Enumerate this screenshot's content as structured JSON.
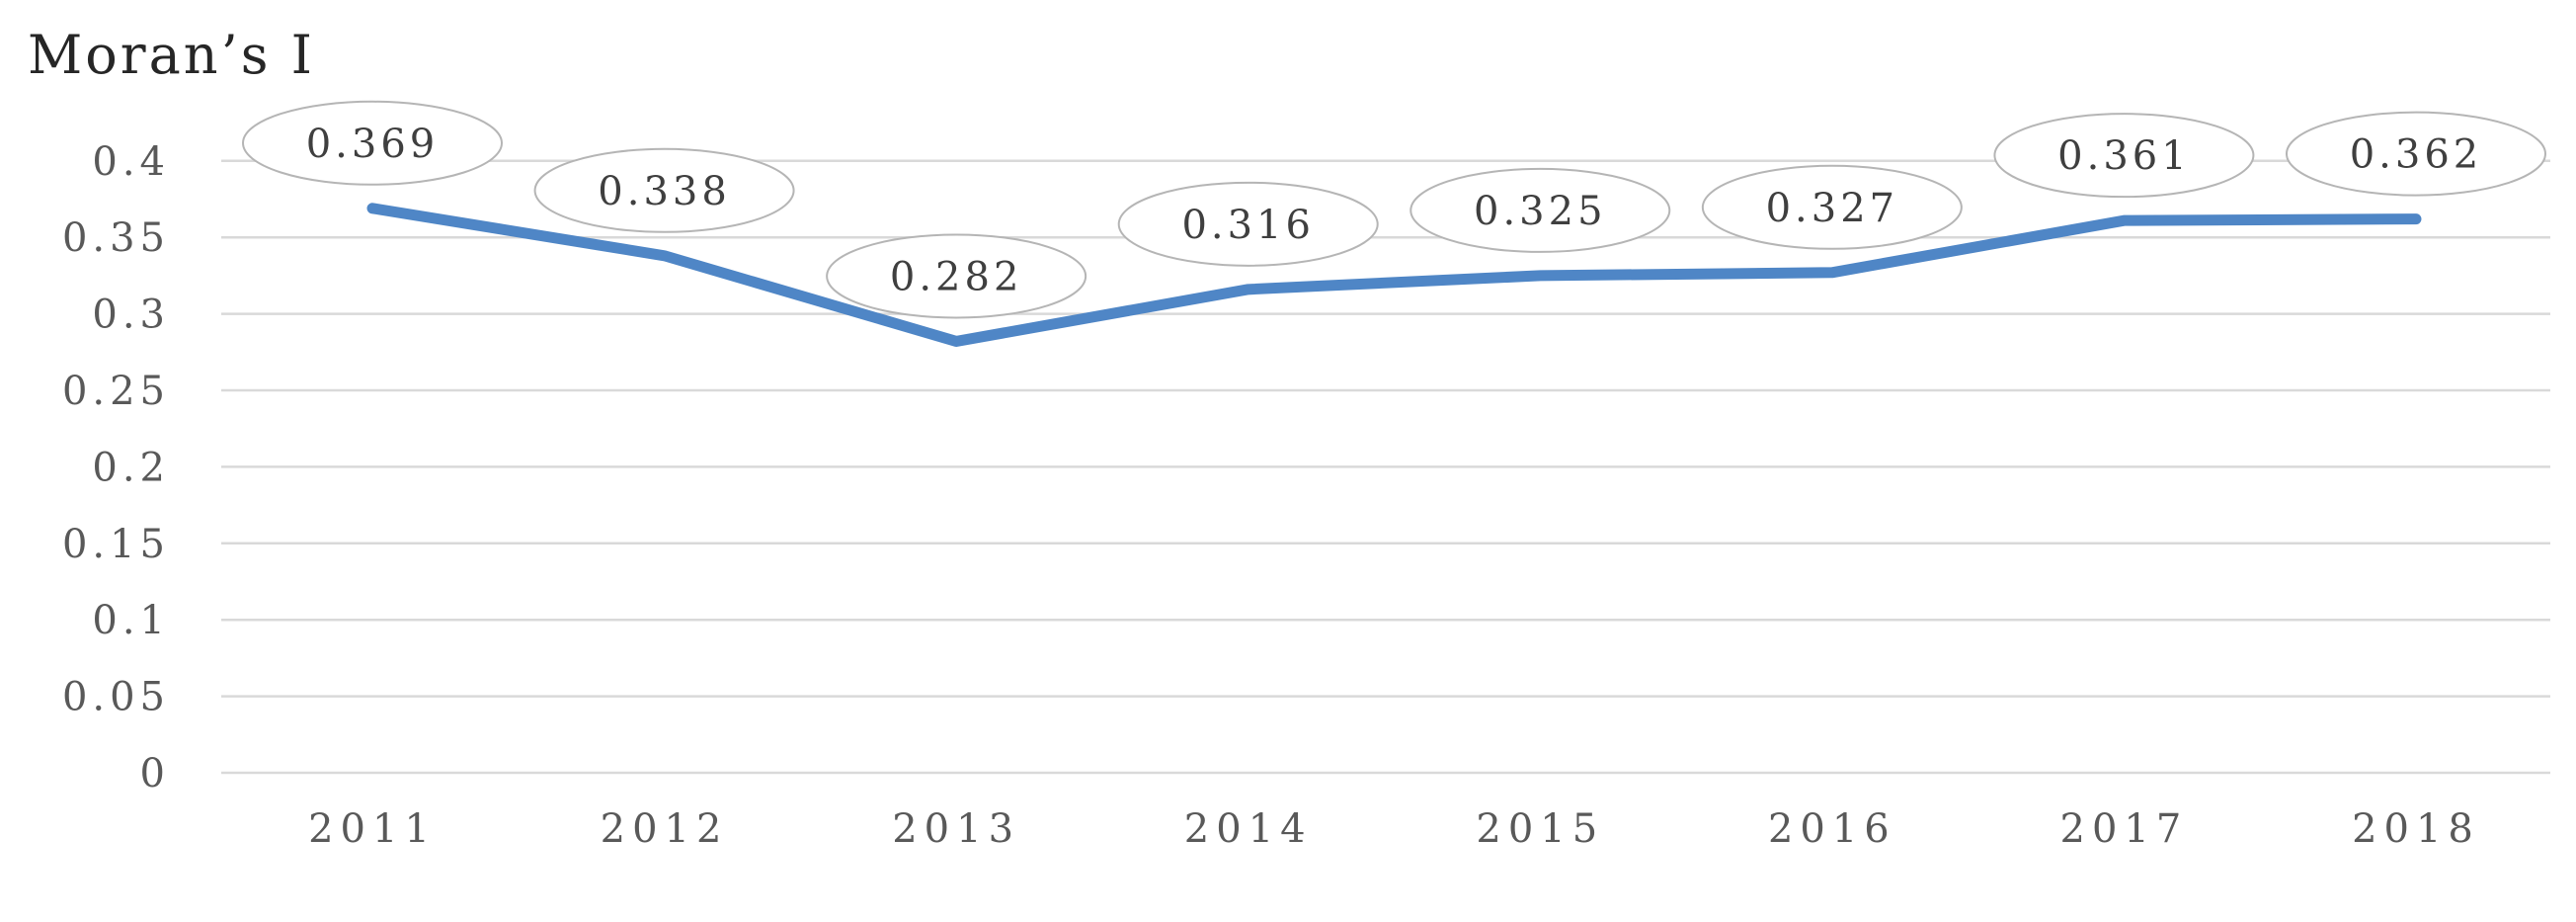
{
  "chart_data": {
    "type": "line",
    "title": "Moran’s I",
    "categories": [
      "2011",
      "2012",
      "2013",
      "2014",
      "2015",
      "2016",
      "2017",
      "2018"
    ],
    "series": [
      {
        "name": "Moran's I",
        "values": [
          0.369,
          0.338,
          0.282,
          0.316,
          0.325,
          0.327,
          0.361,
          0.362
        ]
      }
    ],
    "data_labels": [
      "0.369",
      "0.338",
      "0.282",
      "0.316",
      "0.325",
      "0.327",
      "0.361",
      "0.362"
    ],
    "xlabel": "",
    "ylabel": "",
    "ylim": [
      0,
      0.4
    ],
    "ytick_values": [
      0,
      0.05,
      0.1,
      0.15,
      0.2,
      0.25,
      0.3,
      0.35,
      0.4
    ],
    "ytick_labels": [
      "0",
      "0.05",
      "0.1",
      "0.15",
      "0.2",
      "0.25",
      "0.3",
      "0.35",
      "0.4"
    ],
    "grid": "horizontal",
    "legend": "none",
    "data_label_style": "oval-callout",
    "colors": {
      "line": "#4f86c6",
      "gridline": "#d9d9d9",
      "callout_stroke": "#b5b5b5",
      "callout_fill": "#ffffff",
      "data_label_text": "#3f3f3f",
      "axis_text": "#595959",
      "title_text": "#262626",
      "background": "#ffffff"
    }
  }
}
